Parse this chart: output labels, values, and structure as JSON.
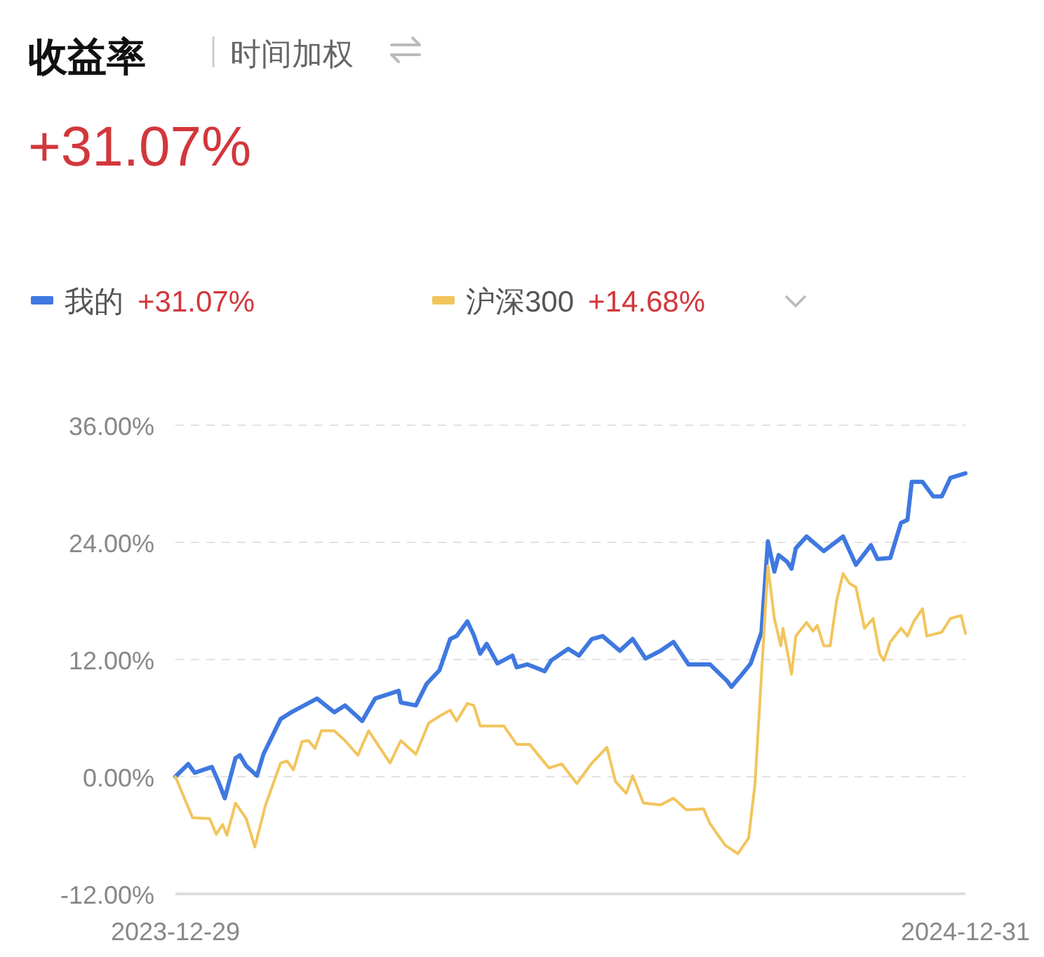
{
  "chart_data": {
    "type": "line",
    "title": "收益率",
    "subtitle": "时间加权",
    "annotations": [
      "+31.07%",
      "+31.07%",
      "+14.68%"
    ],
    "xlim": [
      "2023-12-29",
      "2024-12-31"
    ],
    "xticks": [
      "2023-12-29",
      "2024-12-31"
    ],
    "ylim": [
      -12,
      36
    ],
    "yticks": [
      {
        "value": -12,
        "label": "-12.00%"
      },
      {
        "value": 0,
        "label": "0.00%"
      },
      {
        "value": 12,
        "label": "12.00%"
      },
      {
        "value": 24,
        "label": "24.00%"
      },
      {
        "value": 36,
        "label": "36.00%"
      }
    ],
    "grid": "y",
    "legend": "top left",
    "marker": "none",
    "line_style": "solid",
    "series": [
      {
        "name": "我的",
        "color": "#3f78e0",
        "x": [
          "2023-12-29",
          "2024-01-04",
          "2024-01-07",
          "2024-01-15",
          "2024-01-18",
          "2024-01-21",
          "2024-01-26",
          "2024-01-28",
          "2024-01-31",
          "2024-02-05",
          "2024-02-08",
          "2024-02-16",
          "2024-02-21",
          "2024-03-04",
          "2024-03-12",
          "2024-03-17",
          "2024-03-25",
          "2024-03-31",
          "2024-04-11",
          "2024-04-12",
          "2024-04-19",
          "2024-04-24",
          "2024-04-30",
          "2024-05-05",
          "2024-05-08",
          "2024-05-13",
          "2024-05-16",
          "2024-05-19",
          "2024-05-22",
          "2024-05-27",
          "2024-06-03",
          "2024-06-05",
          "2024-06-10",
          "2024-06-18",
          "2024-06-21",
          "2024-06-29",
          "2024-07-04",
          "2024-07-10",
          "2024-07-15",
          "2024-07-23",
          "2024-07-29",
          "2024-08-04",
          "2024-08-11",
          "2024-08-17",
          "2024-08-24",
          "2024-09-03",
          "2024-09-11",
          "2024-09-13",
          "2024-09-18",
          "2024-09-22",
          "2024-09-27",
          "2024-09-30",
          "2024-10-03",
          "2024-10-05",
          "2024-10-09",
          "2024-10-11",
          "2024-10-13",
          "2024-10-18",
          "2024-10-26",
          "2024-11-04",
          "2024-11-10",
          "2024-11-17",
          "2024-11-20",
          "2024-11-26",
          "2024-12-01",
          "2024-12-04",
          "2024-12-06",
          "2024-12-11",
          "2024-12-16",
          "2024-12-20",
          "2024-12-24",
          "2024-12-31"
        ],
        "values": [
          0,
          1.3,
          0.4,
          1.0,
          -0.5,
          -2.2,
          1.9,
          2.2,
          1.1,
          0.1,
          2.3,
          5.9,
          6.6,
          8.0,
          6.6,
          7.3,
          5.7,
          8.0,
          8.8,
          7.6,
          7.3,
          9.5,
          10.9,
          14.1,
          14.4,
          15.9,
          14.5,
          12.6,
          13.6,
          11.6,
          12.4,
          11.2,
          11.5,
          10.8,
          11.9,
          13.1,
          12.4,
          14.1,
          14.4,
          12.9,
          14.1,
          12.1,
          12.9,
          13.8,
          11.5,
          11.5,
          9.8,
          9.2,
          10.5,
          11.6,
          14.8,
          24.1,
          21.0,
          22.7,
          22.0,
          21.3,
          23.4,
          24.6,
          23.1,
          24.6,
          21.7,
          23.7,
          22.3,
          22.4,
          26.0,
          26.3,
          30.2,
          30.2,
          28.7,
          28.7,
          30.6,
          31.07
        ]
      },
      {
        "name": "沪深300",
        "color": "#f2c55c",
        "x": [
          "2023-12-29",
          "2024-01-06",
          "2024-01-14",
          "2024-01-17",
          "2024-01-20",
          "2024-01-22",
          "2024-01-26",
          "2024-01-31",
          "2024-02-04",
          "2024-02-09",
          "2024-02-16",
          "2024-02-19",
          "2024-02-22",
          "2024-02-26",
          "2024-02-29",
          "2024-03-03",
          "2024-03-06",
          "2024-03-12",
          "2024-03-17",
          "2024-03-23",
          "2024-03-28",
          "2024-04-07",
          "2024-04-12",
          "2024-04-19",
          "2024-04-25",
          "2024-04-30",
          "2024-05-05",
          "2024-05-08",
          "2024-05-13",
          "2024-05-16",
          "2024-05-19",
          "2024-05-30",
          "2024-06-05",
          "2024-06-11",
          "2024-06-20",
          "2024-06-26",
          "2024-07-03",
          "2024-07-10",
          "2024-07-17",
          "2024-07-21",
          "2024-07-26",
          "2024-07-29",
          "2024-08-03",
          "2024-08-11",
          "2024-08-17",
          "2024-08-23",
          "2024-08-31",
          "2024-09-03",
          "2024-09-10",
          "2024-09-16",
          "2024-09-21",
          "2024-09-24",
          "2024-09-30",
          "2024-10-03",
          "2024-10-06",
          "2024-10-07",
          "2024-10-11",
          "2024-10-13",
          "2024-10-18",
          "2024-10-21",
          "2024-10-23",
          "2024-10-26",
          "2024-10-29",
          "2024-11-01",
          "2024-11-04",
          "2024-11-07",
          "2024-11-10",
          "2024-11-14",
          "2024-11-18",
          "2024-11-21",
          "2024-11-23",
          "2024-11-26",
          "2024-12-01",
          "2024-12-04",
          "2024-12-07",
          "2024-12-11",
          "2024-12-13",
          "2024-12-20",
          "2024-12-24",
          "2024-12-29",
          "2024-12-31"
        ],
        "values": [
          0,
          -4.2,
          -4.3,
          -5.9,
          -4.9,
          -6.0,
          -2.7,
          -4.3,
          -7.2,
          -2.9,
          1.4,
          1.6,
          0.7,
          3.6,
          3.7,
          2.9,
          4.7,
          4.7,
          3.7,
          2.2,
          4.7,
          1.4,
          3.7,
          2.3,
          5.5,
          6.2,
          6.8,
          5.7,
          7.5,
          7.3,
          5.2,
          5.2,
          3.3,
          3.3,
          0.9,
          1.3,
          -0.7,
          1.4,
          3.0,
          -0.5,
          -1.7,
          0.1,
          -2.7,
          -2.9,
          -2.2,
          -3.4,
          -3.3,
          -4.8,
          -7.0,
          -7.9,
          -6.3,
          -0.7,
          21.6,
          16.2,
          13.4,
          15.2,
          10.5,
          14.4,
          15.8,
          14.9,
          15.5,
          13.4,
          13.4,
          18.0,
          20.8,
          19.8,
          19.4,
          15.2,
          16.2,
          12.6,
          11.9,
          13.8,
          15.2,
          14.4,
          15.9,
          17.2,
          14.4,
          14.8,
          16.2,
          16.5,
          14.68
        ]
      }
    ]
  }
}
